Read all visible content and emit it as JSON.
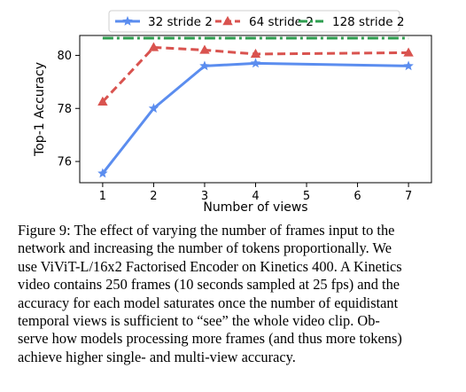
{
  "chart_data": {
    "type": "line",
    "xlabel": "Number of views",
    "ylabel": "Top-1 Accuracy",
    "x": [
      1,
      2,
      3,
      4,
      5,
      6,
      7
    ],
    "xlim": [
      0.55,
      7.45
    ],
    "ylim": [
      75.2,
      80.75
    ],
    "xticks": [
      1,
      2,
      3,
      4,
      5,
      6,
      7
    ],
    "yticks": [
      76,
      78,
      80
    ],
    "grid": false,
    "legend_position": "top-center",
    "series": [
      {
        "name": "32 stride 2",
        "color": "#5b8def",
        "marker": "star",
        "linestyle": "solid",
        "points": [
          [
            1,
            75.55
          ],
          [
            2,
            78.0
          ],
          [
            3,
            79.6
          ],
          [
            4,
            79.7
          ],
          [
            7,
            79.6
          ]
        ]
      },
      {
        "name": "64 stride 2",
        "color": "#d9534f",
        "marker": "triangle",
        "linestyle": "dashed",
        "points": [
          [
            1,
            78.25
          ],
          [
            2,
            80.3
          ],
          [
            3,
            80.2
          ],
          [
            4,
            80.05
          ],
          [
            7,
            80.1
          ]
        ]
      },
      {
        "name": "128 stride 2",
        "color": "#2e9e4f",
        "marker": "none",
        "linestyle": "dashdot",
        "points": [
          [
            1,
            80.65
          ],
          [
            2,
            80.65
          ],
          [
            3,
            80.65
          ],
          [
            4,
            80.65
          ],
          [
            7,
            80.65
          ]
        ]
      }
    ]
  },
  "caption": {
    "lines": [
      "Figure 9: The effect of varying the number of frames input to the",
      "network and increasing the number of tokens proportionally.  We",
      "use ViViT-L/16x2 Factorised Encoder on Kinetics 400. A Kinetics",
      "video contains 250 frames (10 seconds sampled at 25 fps) and the",
      "accuracy for each model saturates once the number of equidistant",
      "temporal views is sufficient to “see” the whole video clip.  Ob-",
      "serve how models processing more frames (and thus more tokens)",
      "achieve higher single- and multi-view accuracy."
    ]
  }
}
